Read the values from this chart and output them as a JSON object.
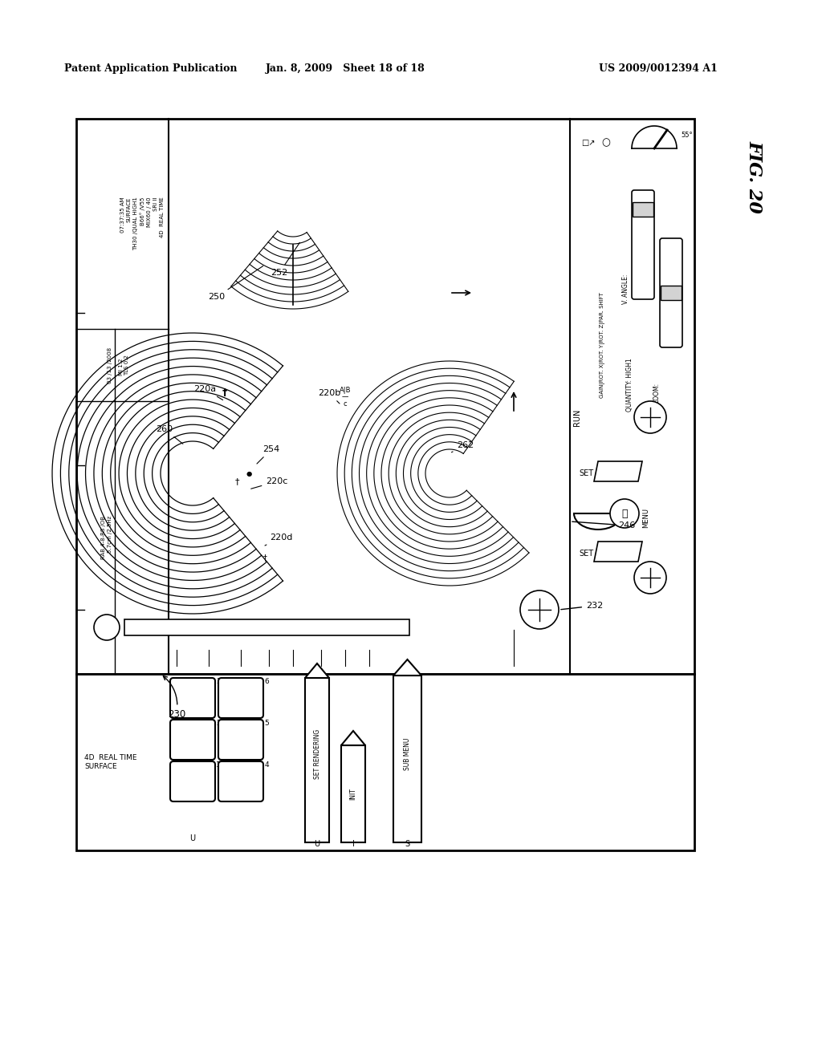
{
  "title_left": "Patent Application Publication",
  "title_center": "Jan. 8, 2009   Sheet 18 of 18",
  "title_right": "US 2009/0012394 A1",
  "fig_label": "FIG. 20",
  "background": "#ffffff",
  "header_info": {
    "line1": "07:37:35 AM",
    "line2": "SURFACE",
    "line3": "TH30 /QUAL HIGH1",
    "line4": "B66° /V55",
    "line5": "MIX60 / 40",
    "line6": "SRI II",
    "line7": "4D  REAL TIME"
  }
}
